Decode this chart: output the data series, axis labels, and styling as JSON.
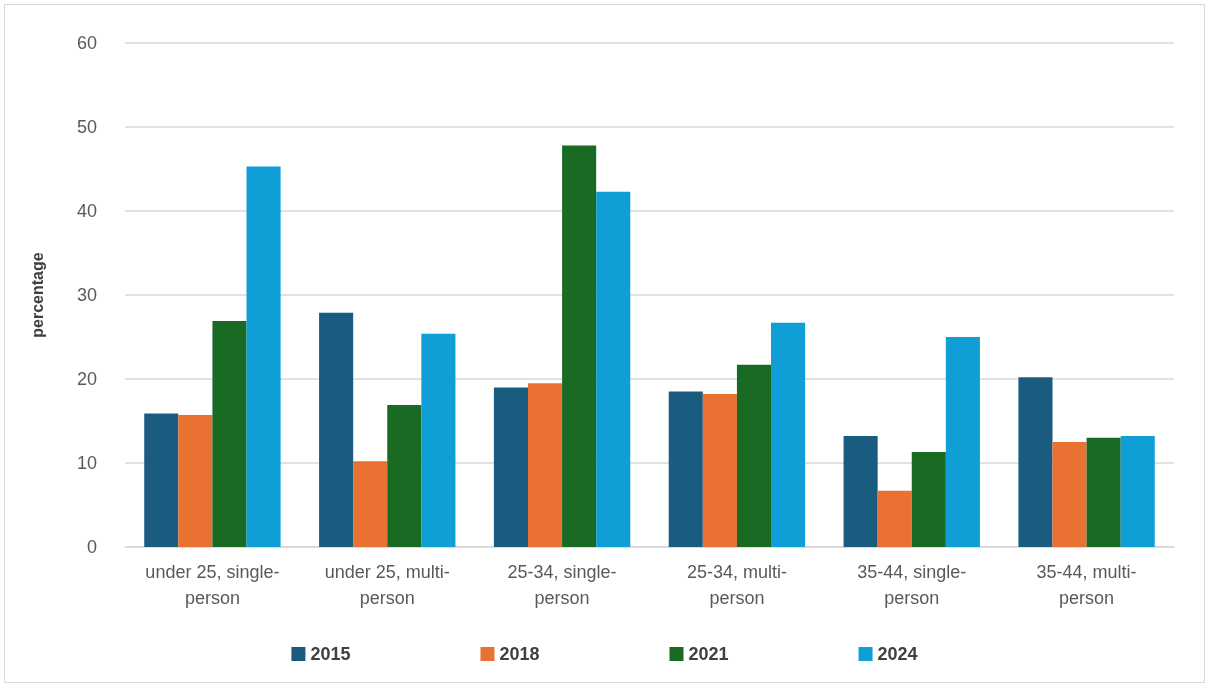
{
  "chart_data": {
    "type": "bar",
    "ylabel": "percentage",
    "categories": [
      "under 25, single-person",
      "under 25, multi-person",
      "25-34, single-person",
      "25-34, multi-person",
      "35-44, single-person",
      "35-44, multi-person"
    ],
    "series": [
      {
        "name": "2015",
        "color": "#195c80",
        "values": [
          15.9,
          27.9,
          19.0,
          18.5,
          13.2,
          20.2
        ]
      },
      {
        "name": "2018",
        "color": "#e97132",
        "values": [
          15.7,
          10.2,
          19.5,
          18.2,
          6.7,
          12.5
        ]
      },
      {
        "name": "2021",
        "color": "#196b24",
        "values": [
          26.9,
          16.9,
          47.8,
          21.7,
          11.3,
          13.0
        ]
      },
      {
        "name": "2024",
        "color": "#0f9ed5",
        "values": [
          45.3,
          25.4,
          42.3,
          26.7,
          25.0,
          13.2
        ]
      }
    ],
    "ylim": [
      0,
      60
    ],
    "yticks": [
      0,
      10,
      20,
      30,
      40,
      50,
      60
    ],
    "grid": "y",
    "legend": "bottom"
  }
}
